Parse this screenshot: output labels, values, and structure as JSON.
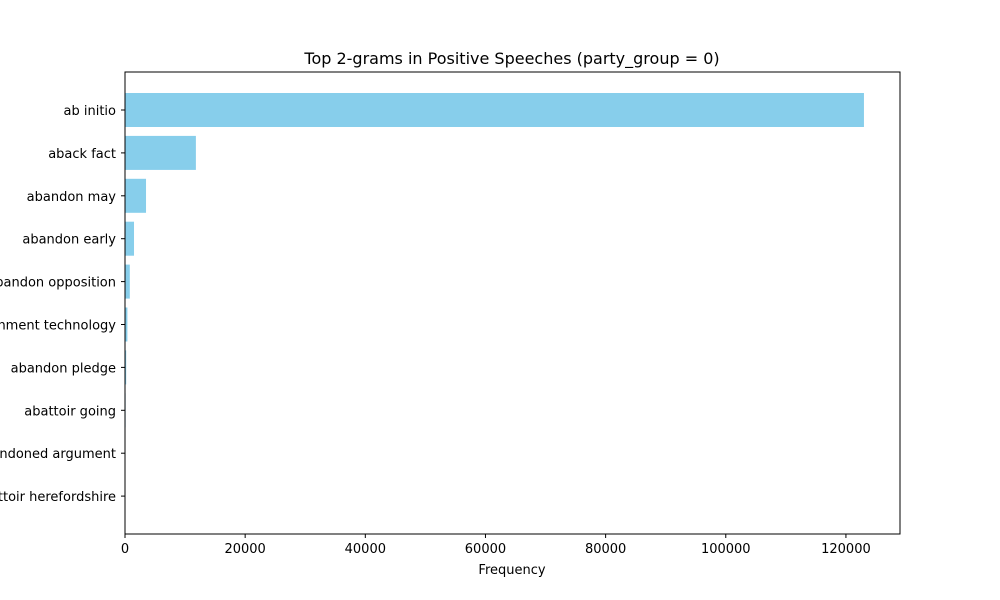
{
  "chart_data": {
    "type": "bar",
    "orientation": "horizontal",
    "title": "Top 2-grams in Positive Speeches (party_group = 0)",
    "xlabel": "Frequency",
    "ylabel": "",
    "xlim": [
      0,
      129000
    ],
    "xticks": [
      0,
      20000,
      40000,
      60000,
      80000,
      100000,
      120000
    ],
    "xtick_labels": [
      "0",
      "20000",
      "40000",
      "60000",
      "80000",
      "100000",
      "120000"
    ],
    "categories": [
      "ab initio",
      "aback fact",
      "abandon may",
      "abandon early",
      "abandon opposition",
      "abandonment technology",
      "abandon pledge",
      "abattoir going",
      "abandoned argument",
      "abattoir herefordshire"
    ],
    "values": [
      123000,
      11800,
      3500,
      1500,
      800,
      400,
      200,
      100,
      50,
      30
    ],
    "bar_color": "#87ceeb",
    "grid": false,
    "legend": "none"
  }
}
